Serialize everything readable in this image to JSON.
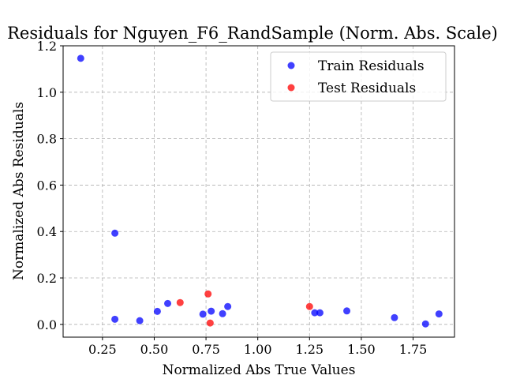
{
  "chart_data": {
    "type": "scatter",
    "title": "Residuals for Nguyen_F6_RandSample (Norm. Abs. Scale)",
    "xlabel": "Normalized Abs True Values",
    "ylabel": "Normalized Abs Residuals",
    "xlim": [
      0.06,
      1.95
    ],
    "ylim": [
      -0.055,
      1.2
    ],
    "xticks": [
      0.25,
      0.5,
      0.75,
      1.0,
      1.25,
      1.5,
      1.75
    ],
    "xtick_labels": [
      "0.25",
      "0.50",
      "0.75",
      "1.00",
      "1.25",
      "1.50",
      "1.75"
    ],
    "yticks": [
      0.0,
      0.2,
      0.4,
      0.6,
      0.8,
      1.0,
      1.2
    ],
    "ytick_labels": [
      "0.0",
      "0.2",
      "0.4",
      "0.6",
      "0.8",
      "1.0",
      "1.2"
    ],
    "grid": true,
    "legend_position": "top-right",
    "series": [
      {
        "name": "Train Residuals",
        "color": "#0000ff",
        "points": [
          [
            0.145,
            1.146
          ],
          [
            0.31,
            0.393
          ],
          [
            0.31,
            0.022
          ],
          [
            0.43,
            0.016
          ],
          [
            0.515,
            0.056
          ],
          [
            0.565,
            0.09
          ],
          [
            0.735,
            0.044
          ],
          [
            0.775,
            0.057
          ],
          [
            0.83,
            0.046
          ],
          [
            0.855,
            0.077
          ],
          [
            1.275,
            0.05
          ],
          [
            1.3,
            0.05
          ],
          [
            1.43,
            0.058
          ],
          [
            1.66,
            0.029
          ],
          [
            1.81,
            0.002
          ],
          [
            1.875,
            0.045
          ]
        ]
      },
      {
        "name": "Test Residuals",
        "color": "#ff0000",
        "points": [
          [
            0.625,
            0.094
          ],
          [
            0.76,
            0.131
          ],
          [
            0.77,
            0.006
          ],
          [
            1.25,
            0.077
          ]
        ]
      }
    ]
  }
}
